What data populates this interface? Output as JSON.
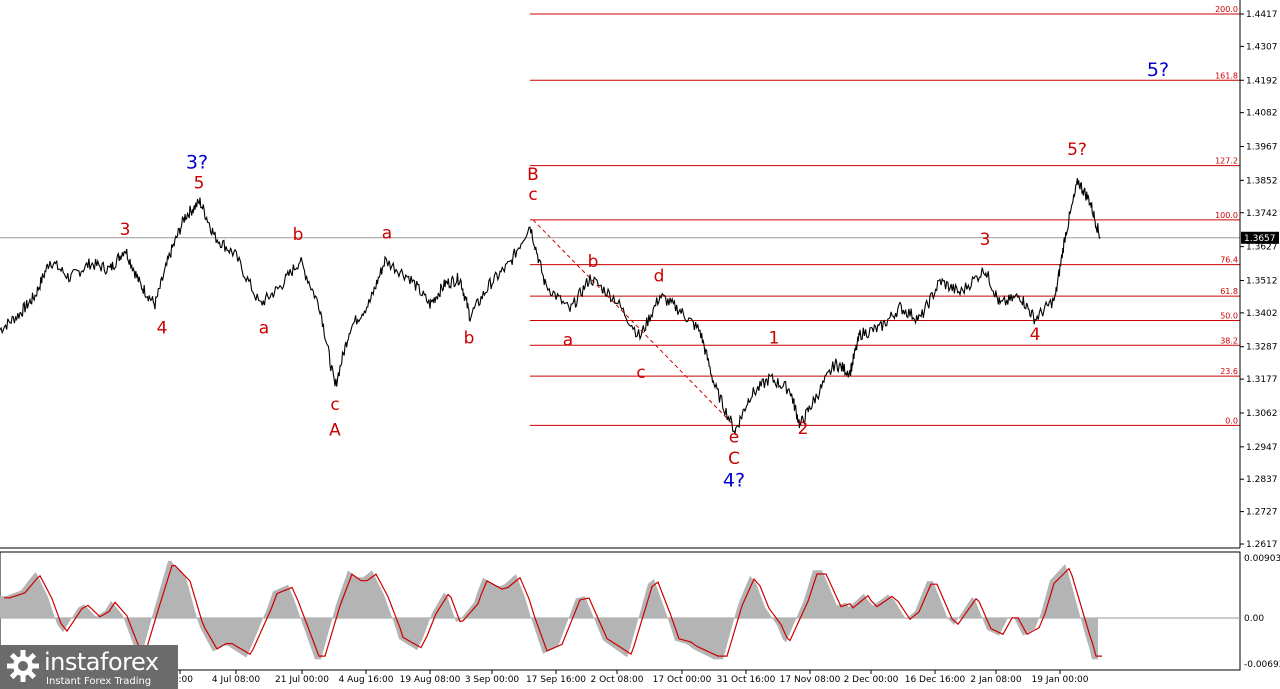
{
  "chart_data": [
    {
      "type": "line",
      "panel": "price",
      "y_ticks": [
        "1.4417",
        "1.4307",
        "1.4192",
        "1.4082",
        "1.3967",
        "1.3852",
        "1.3742",
        "1.3627",
        "1.3512",
        "1.3402",
        "1.3287",
        "1.3177",
        "1.3062",
        "1.2947",
        "1.2837",
        "1.2727",
        "1.2617"
      ],
      "ylim": [
        1.2617,
        1.4417
      ],
      "current_price": "1.3657",
      "x_ticks": [
        "16:00",
        "4 Jul 08:00",
        "21 Jul 00:00",
        "4 Aug 16:00",
        "19 Aug 08:00",
        "3 Sep 00:00",
        "17 Sep 16:00",
        "2 Oct 08:00",
        "17 Oct 00:00",
        "31 Oct 16:00",
        "17 Nov 08:00",
        "2 Dec 00:00",
        "16 Dec 16:00",
        "2 Jan 08:00",
        "19 Jan 00:00"
      ],
      "price_path": [
        [
          0,
          1.3345
        ],
        [
          0.02,
          1.34
        ],
        [
          0.035,
          1.346
        ],
        [
          0.05,
          1.358
        ],
        [
          0.07,
          1.352
        ],
        [
          0.09,
          1.357
        ],
        [
          0.11,
          1.355
        ],
        [
          0.125,
          1.362
        ],
        [
          0.14,
          1.35
        ],
        [
          0.155,
          1.343
        ],
        [
          0.17,
          1.36
        ],
        [
          0.185,
          1.373
        ],
        [
          0.2,
          1.378
        ],
        [
          0.215,
          1.366
        ],
        [
          0.235,
          1.36
        ],
        [
          0.26,
          1.343
        ],
        [
          0.28,
          1.349
        ],
        [
          0.3,
          1.358
        ],
        [
          0.32,
          1.342
        ],
        [
          0.335,
          1.315
        ],
        [
          0.35,
          1.335
        ],
        [
          0.37,
          1.344
        ],
        [
          0.385,
          1.358
        ],
        [
          0.41,
          1.352
        ],
        [
          0.43,
          1.343
        ],
        [
          0.445,
          1.35
        ],
        [
          0.46,
          1.352
        ],
        [
          0.47,
          1.339
        ],
        [
          0.49,
          1.35
        ],
        [
          0.51,
          1.357
        ],
        [
          0.53,
          1.37
        ],
        [
          0.545,
          1.35
        ],
        [
          0.57,
          1.341
        ],
        [
          0.59,
          1.352
        ],
        [
          0.615,
          1.345
        ],
        [
          0.64,
          1.332
        ],
        [
          0.66,
          1.346
        ],
        [
          0.68,
          1.341
        ],
        [
          0.7,
          1.334
        ],
        [
          0.715,
          1.315
        ],
        [
          0.735,
          1.3
        ],
        [
          0.75,
          1.312
        ],
        [
          0.77,
          1.318
        ],
        [
          0.79,
          1.314
        ],
        [
          0.8,
          1.302
        ],
        [
          0.815,
          1.311
        ],
        [
          0.835,
          1.323
        ],
        [
          0.85,
          1.32
        ],
        [
          0.86,
          1.333
        ],
        [
          0.88,
          1.335
        ],
        [
          0.9,
          1.342
        ],
        [
          0.92,
          1.338
        ],
        [
          0.94,
          1.351
        ],
        [
          0.96,
          1.347
        ],
        [
          0.985,
          1.355
        ],
        [
          1.0,
          1.343
        ],
        [
          1.02,
          1.346
        ],
        [
          1.035,
          1.338
        ],
        [
          1.055,
          1.345
        ],
        [
          1.065,
          1.366
        ],
        [
          1.078,
          1.385
        ],
        [
          1.09,
          1.378
        ],
        [
          1.1,
          1.366
        ]
      ],
      "fibonacci_levels": [
        {
          "label": "200.0",
          "value": 1.4417
        },
        {
          "label": "161.8",
          "value": 1.4192
        },
        {
          "label": "127.2",
          "value": 1.3902
        },
        {
          "label": "100.0",
          "value": 1.3718
        },
        {
          "label": "76.4",
          "value": 1.3566
        },
        {
          "label": "61.8",
          "value": 1.3459
        },
        {
          "label": "50.0",
          "value": 1.3376
        },
        {
          "label": "38.2",
          "value": 1.3292
        },
        {
          "label": "23.6",
          "value": 1.3187
        },
        {
          "label": "0.0",
          "value": 1.302
        }
      ],
      "wave_labels": [
        {
          "text": "3",
          "color": "red",
          "x": 0.125,
          "y": 1.3666
        },
        {
          "text": "4",
          "color": "red",
          "x": 0.162,
          "y": 1.3332
        },
        {
          "text": "3?",
          "color": "blue",
          "x": 0.197,
          "y": 1.3893
        },
        {
          "text": "5",
          "color": "red",
          "x": 0.199,
          "y": 1.3825
        },
        {
          "text": "a",
          "color": "red",
          "x": 0.264,
          "y": 1.3332
        },
        {
          "text": "b",
          "color": "red",
          "x": 0.298,
          "y": 1.3649
        },
        {
          "text": "c",
          "color": "red",
          "x": 0.335,
          "y": 1.3072
        },
        {
          "text": "A",
          "color": "red",
          "x": 0.335,
          "y": 1.2985
        },
        {
          "text": "a",
          "color": "red",
          "x": 0.387,
          "y": 1.3655
        },
        {
          "text": "b",
          "color": "red",
          "x": 0.469,
          "y": 1.3298
        },
        {
          "text": "B",
          "color": "red",
          "x": 0.533,
          "y": 1.3853
        },
        {
          "text": "c",
          "color": "red",
          "x": 0.533,
          "y": 1.3785
        },
        {
          "text": "b",
          "color": "red",
          "x": 0.593,
          "y": 1.3558
        },
        {
          "text": "a",
          "color": "red",
          "x": 0.568,
          "y": 1.3292
        },
        {
          "text": "d",
          "color": "red",
          "x": 0.659,
          "y": 1.3508
        },
        {
          "text": "c",
          "color": "red",
          "x": 0.641,
          "y": 1.318
        },
        {
          "text": "e",
          "color": "red",
          "x": 0.734,
          "y": 1.2962
        },
        {
          "text": "C",
          "color": "red",
          "x": 0.734,
          "y": 1.2888
        },
        {
          "text": "4?",
          "color": "blue",
          "x": 0.734,
          "y": 1.2813
        },
        {
          "text": "1",
          "color": "red",
          "x": 0.774,
          "y": 1.3298
        },
        {
          "text": "2",
          "color": "red",
          "x": 0.803,
          "y": 1.299
        },
        {
          "text": "3",
          "color": "red",
          "x": 0.985,
          "y": 1.3632
        },
        {
          "text": "4",
          "color": "red",
          "x": 1.035,
          "y": 1.3309
        },
        {
          "text": "5?",
          "color": "red",
          "x": 1.077,
          "y": 1.3938
        },
        {
          "text": "5?",
          "color": "blue",
          "x": 1.158,
          "y": 1.4207
        }
      ]
    },
    {
      "type": "area",
      "panel": "oscillator",
      "y_ticks": [
        "0.00903",
        "0.00",
        "-0.00692"
      ],
      "ylim": [
        -0.00692,
        0.00903
      ],
      "zero_line": 0.0,
      "series_colors": {
        "histogram": "#b4b4b4",
        "signal": "#cc0000"
      }
    }
  ],
  "logo": {
    "name": "instaforex",
    "tagline": "Instant Forex Trading"
  },
  "colors": {
    "price": "#000000",
    "fibonacci": "#cc0000",
    "wave_red": "#cc0000",
    "wave_blue": "#0000cc",
    "current_price_bg": "#000000"
  }
}
